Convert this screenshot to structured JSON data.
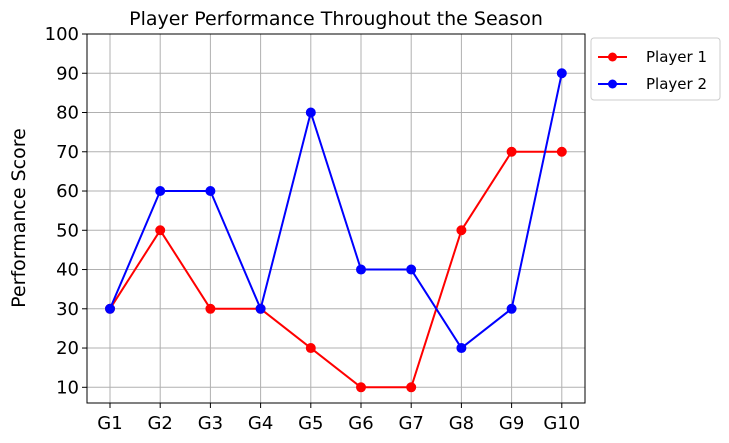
{
  "chart_data": {
    "type": "line",
    "title": "Player Performance Throughout the Season",
    "xlabel": "",
    "ylabel": "Performance Score",
    "categories": [
      "G1",
      "G2",
      "G3",
      "G4",
      "G5",
      "G6",
      "G7",
      "G8",
      "G9",
      "G10"
    ],
    "yticks": [
      10,
      20,
      30,
      40,
      50,
      60,
      70,
      80,
      90,
      100
    ],
    "ylim": [
      6,
      100
    ],
    "grid": true,
    "legend_position": "outside-top-right",
    "series": [
      {
        "name": "Player 1",
        "color": "#ff0000",
        "marker": "circle",
        "values": [
          30,
          50,
          30,
          30,
          20,
          10,
          10,
          50,
          70,
          70
        ]
      },
      {
        "name": "Player 2",
        "color": "#0000ff",
        "marker": "circle",
        "values": [
          30,
          60,
          60,
          30,
          80,
          40,
          40,
          20,
          30,
          90
        ]
      }
    ]
  }
}
